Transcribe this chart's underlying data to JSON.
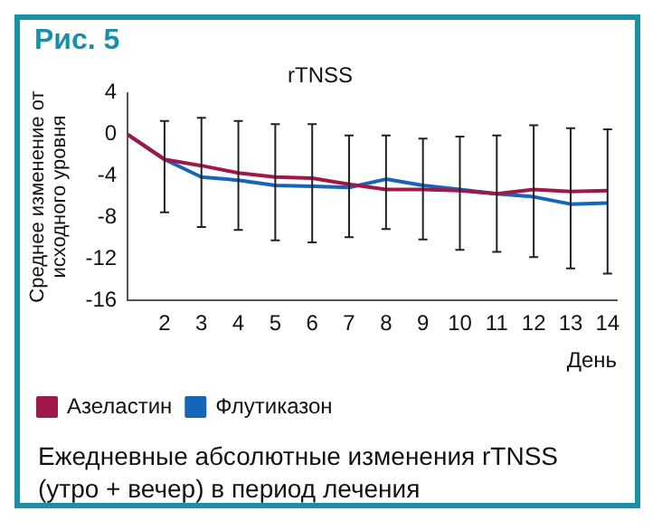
{
  "chart_data": {
    "type": "line",
    "title": "rTNSS",
    "ylabel": "Среднее изменение от исходного уровня",
    "xlabel": "День",
    "annotations": [
      "Рис. 5",
      "Ежедневные абсолютные изменения rTNSS (утро + вечер) в период лечения"
    ],
    "categories": [
      null,
      "2",
      "3",
      "4",
      "5",
      "6",
      "7",
      "8",
      "9",
      "10",
      "11",
      "12",
      "13",
      "14"
    ],
    "series": [
      {
        "name": "Азеластин",
        "color": "#a0174a",
        "values": [
          0,
          -2.4,
          -3.0,
          -3.7,
          -4.1,
          -4.2,
          -4.8,
          -5.3,
          -5.3,
          -5.4,
          -5.7,
          -5.3,
          -5.5,
          -5.4
        ]
      },
      {
        "name": "Флутиказон",
        "color": "#1565b8",
        "values": [
          0,
          -2.4,
          -4.1,
          -4.4,
          -4.9,
          -5.0,
          -5.1,
          -4.3,
          -4.9,
          -5.3,
          -5.7,
          -6.0,
          -6.7,
          -6.6
        ],
        "errors": [
          null,
          [
            -7.5,
            1.3
          ],
          [
            -8.9,
            1.6
          ],
          [
            -9.2,
            1.3
          ],
          [
            -10.2,
            1.0
          ],
          [
            -10.4,
            1.0
          ],
          [
            -9.9,
            -0.1
          ],
          [
            -9.1,
            -0.1
          ],
          [
            -10.1,
            -0.4
          ],
          [
            -11.1,
            -0.2
          ],
          [
            -11.3,
            -0.1
          ],
          [
            -11.8,
            0.9
          ],
          [
            -12.9,
            0.6
          ],
          [
            -13.4,
            0.5
          ]
        ]
      }
    ],
    "ylim": [
      -16,
      4
    ],
    "yticks": [
      4,
      0,
      -4,
      -8,
      -12,
      -16
    ],
    "grid": false,
    "legend": "bottom left",
    "marker": "none",
    "line_style": "solid"
  }
}
